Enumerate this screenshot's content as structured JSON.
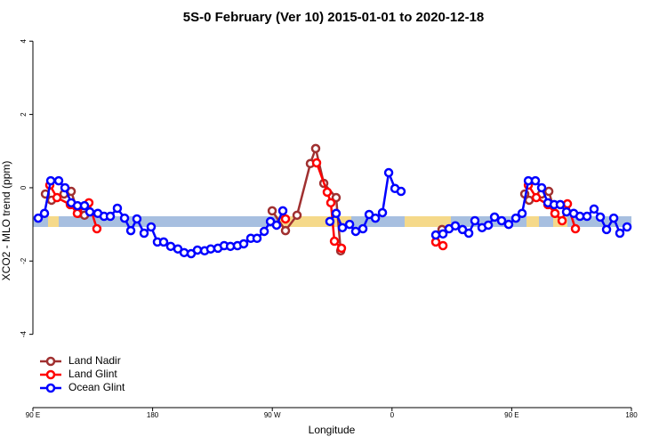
{
  "chart_data": {
    "type": "line",
    "title": "5S-0 February (Ver 10)   2015-01-01 to 2020-12-18",
    "x_label": "Longitude",
    "y_label": "XCO2 - MLO trend (ppm)",
    "xlim": [
      90,
      540
    ],
    "ylim": [
      -6,
      4.2
    ],
    "xticks": [
      {
        "value": 90,
        "label": "90 E"
      },
      180,
      {
        "value": 270,
        "label": "90 W"
      },
      {
        "value": 360,
        "label": "0"
      },
      {
        "value": 450,
        "label": "90 E"
      },
      {
        "value": 540,
        "label": "180"
      }
    ],
    "yticks": [
      -4,
      -2,
      0,
      2,
      4
    ],
    "legend": "bottom-left",
    "series": [
      {
        "name": "Land Nadir",
        "color": "#a03030",
        "x": [
          99.4,
          104.0,
          113.4,
          118.8,
          124.1,
          128.8,
          200,
          269.9,
          279.9,
          288.6,
          298.6,
          302.6,
          308.7,
          318.0,
          321.4,
          360,
          397.6,
          430,
          459.8,
          463.1,
          472.5,
          477.9,
          482.5
        ],
        "values": [
          -0.17,
          -0.34,
          -0.17,
          -0.1,
          -0.7,
          -0.75,
          null,
          -0.63,
          -1.17,
          -0.75,
          0.66,
          1.07,
          0.12,
          -0.27,
          -1.72,
          null,
          -1.14,
          null,
          -0.17,
          -0.34,
          -0.17,
          -0.1,
          -0.7
        ]
      },
      {
        "name": "Land Glint",
        "color": "#ff0000",
        "x": [
          102.7,
          108.1,
          118.1,
          123.4,
          132.1,
          138.1,
          200,
          279.9,
          290,
          303.3,
          311.3,
          314.0,
          316.7,
          322.0,
          360,
          392.9,
          398.3,
          430,
          462.5,
          468.5,
          477.2,
          482.5,
          487.9,
          491.9,
          497.9
        ],
        "values": [
          0.07,
          -0.27,
          -0.46,
          -0.7,
          -0.41,
          -1.12,
          null,
          -0.85,
          null,
          0.68,
          -0.12,
          -0.41,
          -1.46,
          -1.65,
          null,
          -1.48,
          -1.58,
          null,
          0.07,
          -0.27,
          -0.46,
          -0.7,
          -0.9,
          -0.44,
          -1.12
        ]
      },
      {
        "name": "Ocean Glint",
        "color": "#0000ff",
        "x": [
          94.0,
          98.7,
          103.4,
          109.4,
          114.1,
          118.8,
          123.5,
          128.8,
          132.8,
          138.8,
          143.5,
          148.2,
          153.5,
          158.9,
          163.6,
          168.2,
          173.6,
          178.9,
          183.6,
          188.3,
          193.6,
          199.0,
          203.7,
          209.0,
          213.7,
          219.1,
          223.7,
          229.1,
          233.8,
          238.5,
          243.8,
          248.5,
          253.8,
          258.5,
          263.9,
          268.6,
          273.2,
          277.9,
          300,
          313.3,
          318.0,
          322.7,
          328.1,
          332.7,
          338.1,
          342.8,
          347.5,
          352.8,
          357.5,
          362.2,
          366.8,
          380,
          392.9,
          398.3,
          402.9,
          407.6,
          413.0,
          417.7,
          422.3,
          427.7,
          432.4,
          437.1,
          442.4,
          447.7,
          453.1,
          457.8,
          462.5,
          467.8,
          472.5,
          477.2,
          481.9,
          486.5,
          491.2,
          496.6,
          501.3,
          506.6,
          511.9,
          516.6,
          521.3,
          526.7,
          531.3,
          536.7
        ],
        "values": [
          -0.83,
          -0.7,
          0.19,
          0.19,
          0,
          -0.41,
          -0.49,
          -0.49,
          -0.66,
          -0.7,
          -0.78,
          -0.78,
          -0.56,
          -0.83,
          -1.17,
          -0.85,
          -1.24,
          -1.07,
          -1.48,
          -1.48,
          -1.6,
          -1.67,
          -1.77,
          -1.8,
          -1.7,
          -1.72,
          -1.67,
          -1.65,
          -1.58,
          -1.6,
          -1.58,
          -1.53,
          -1.38,
          -1.38,
          -1.19,
          -0.92,
          -1.02,
          -0.63,
          null,
          -0.92,
          -0.7,
          -1.09,
          -1.0,
          -1.19,
          -1.12,
          -0.73,
          -0.83,
          -0.68,
          0.41,
          -0.02,
          -0.1,
          null,
          -1.29,
          -1.26,
          -1.12,
          -1.04,
          -1.14,
          -1.24,
          -0.9,
          -1.09,
          -1.02,
          -0.8,
          -0.9,
          -1.0,
          -0.83,
          -0.7,
          0.19,
          0.19,
          0,
          -0.41,
          -0.46,
          -0.46,
          -0.66,
          -0.7,
          -0.78,
          -0.78,
          -0.58,
          -0.8,
          -1.14,
          -0.83,
          -1.24,
          -1.07
        ]
      }
    ]
  }
}
